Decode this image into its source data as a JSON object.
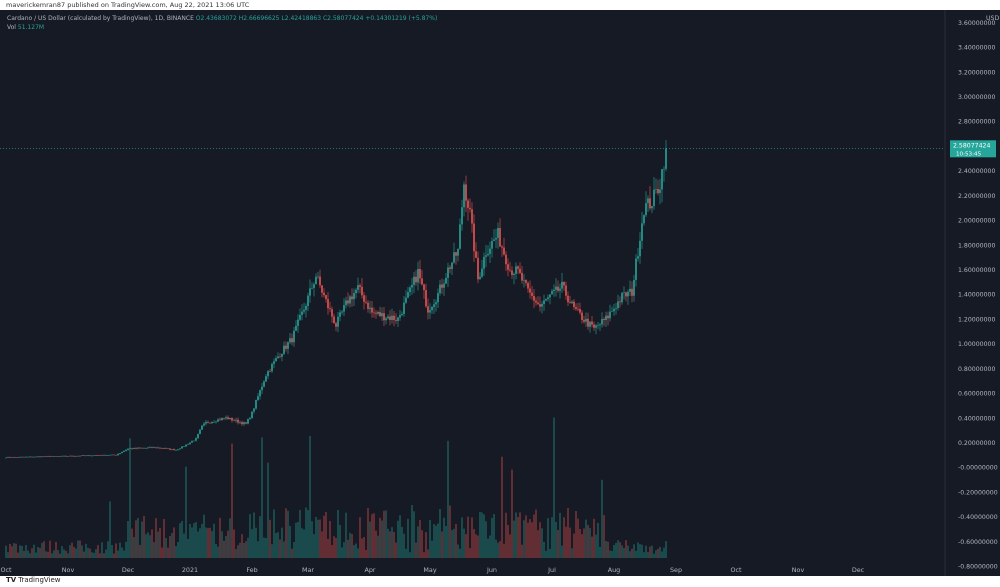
{
  "header": {
    "published_line": "maverickemran87 published on TradingView.com, Aug 22, 2021 13:06 UTC"
  },
  "legend": {
    "title": "Cardano / US Dollar (calculated by TradingView), 1D, BINANCE",
    "open": "O2.43683072",
    "high": "H2.66696625",
    "low": "L2.42418863",
    "close": "C2.58077424",
    "change": "+0.14301219 (+5.87%)",
    "volume_label": "Vol",
    "volume_value": "51.127M"
  },
  "footer": {
    "brand": "TradingView",
    "brand_mark": "TV"
  },
  "colors": {
    "bg": "#161a25",
    "up": "#26a69a",
    "down": "#ef5350",
    "axis_text": "#b2b5be"
  },
  "chart_data": {
    "type": "candlestick",
    "symbol": "ADAUSD",
    "interval": "1D",
    "currency": "USD",
    "y_ticks": [
      "3.60000000",
      "3.40000000",
      "3.20000000",
      "3.00000000",
      "2.80000000",
      "2.60000000",
      "2.40000000",
      "2.20000000",
      "2.00000000",
      "1.80000000",
      "1.60000000",
      "1.40000000",
      "1.20000000",
      "1.00000000",
      "0.80000000",
      "0.60000000",
      "0.40000000",
      "0.20000000",
      "-0.00000000",
      "-0.20000000",
      "-0.40000000",
      "-0.60000000",
      "-0.80000000"
    ],
    "y_tick_values": [
      3.6,
      3.4,
      3.2,
      3.0,
      2.8,
      2.6,
      2.4,
      2.2,
      2.0,
      1.8,
      1.6,
      1.4,
      1.2,
      1.0,
      0.8,
      0.6,
      0.4,
      0.2,
      0.0,
      -0.2,
      -0.4,
      -0.6,
      -0.8
    ],
    "ylim": [
      -0.88,
      3.7
    ],
    "x_ticks": [
      "Oct",
      "Nov",
      "Dec",
      "2021",
      "Feb",
      "Mar",
      "Apr",
      "May",
      "Jun",
      "Jul",
      "Aug",
      "Sep",
      "Oct",
      "Nov",
      "Dec"
    ],
    "x_tick_days": [
      0,
      31,
      61,
      92,
      123,
      151,
      182,
      212,
      243,
      273,
      304,
      335,
      365,
      396,
      426
    ],
    "price_path": [
      [
        0,
        0.08
      ],
      [
        30,
        0.09
      ],
      [
        55,
        0.1
      ],
      [
        61,
        0.15
      ],
      [
        75,
        0.16
      ],
      [
        85,
        0.14
      ],
      [
        90,
        0.18
      ],
      [
        95,
        0.23
      ],
      [
        98,
        0.33
      ],
      [
        100,
        0.36
      ],
      [
        110,
        0.4
      ],
      [
        120,
        0.35
      ],
      [
        123,
        0.44
      ],
      [
        130,
        0.75
      ],
      [
        137,
        0.92
      ],
      [
        143,
        1.04
      ],
      [
        149,
        1.28
      ],
      [
        155,
        1.55
      ],
      [
        161,
        1.3
      ],
      [
        165,
        1.15
      ],
      [
        171,
        1.35
      ],
      [
        176,
        1.45
      ],
      [
        183,
        1.25
      ],
      [
        190,
        1.22
      ],
      [
        196,
        1.2
      ],
      [
        202,
        1.42
      ],
      [
        206,
        1.58
      ],
      [
        211,
        1.28
      ],
      [
        216,
        1.4
      ],
      [
        221,
        1.6
      ],
      [
        226,
        1.75
      ],
      [
        229,
        2.3
      ],
      [
        232,
        2.05
      ],
      [
        236,
        1.52
      ],
      [
        240,
        1.75
      ],
      [
        246,
        1.88
      ],
      [
        252,
        1.6
      ],
      [
        256,
        1.58
      ],
      [
        261,
        1.42
      ],
      [
        267,
        1.3
      ],
      [
        272,
        1.38
      ],
      [
        278,
        1.46
      ],
      [
        284,
        1.28
      ],
      [
        290,
        1.18
      ],
      [
        294,
        1.12
      ],
      [
        300,
        1.2
      ],
      [
        308,
        1.38
      ],
      [
        313,
        1.42
      ],
      [
        319,
        2.1
      ],
      [
        323,
        2.15
      ],
      [
        327,
        2.3
      ],
      [
        330,
        2.58
      ]
    ],
    "last_price": {
      "value": 2.58077424,
      "label": "2.58077424",
      "countdown": "10:53:45"
    },
    "volume": {
      "label": "Vol",
      "last": "51.127M"
    }
  }
}
